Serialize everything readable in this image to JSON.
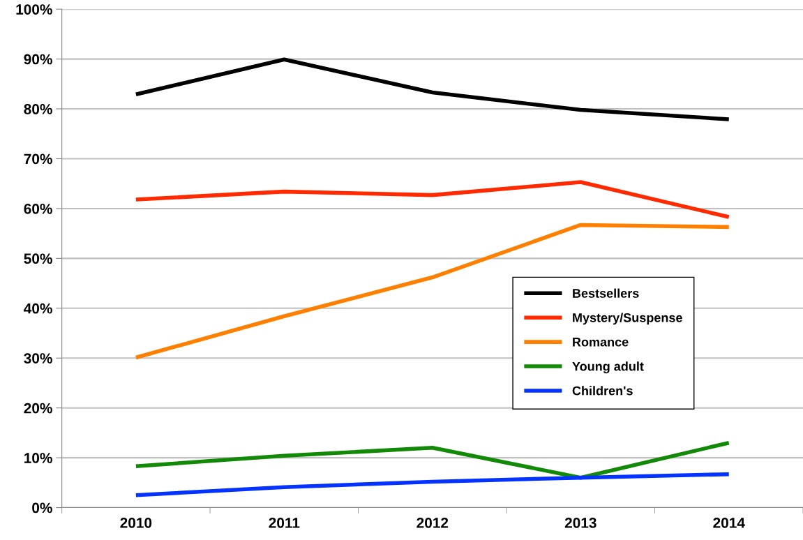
{
  "chart_data": {
    "type": "line",
    "categories": [
      "2010",
      "2011",
      "2012",
      "2013",
      "2014"
    ],
    "series": [
      {
        "name": "Bestsellers",
        "color": "#000000",
        "values": [
          82.9,
          89.9,
          83.3,
          79.8,
          77.9
        ]
      },
      {
        "name": "Mystery/Suspense",
        "color": "#ff2a00",
        "values": [
          61.8,
          63.4,
          62.7,
          65.3,
          58.3
        ]
      },
      {
        "name": "Romance",
        "color": "#ff8000",
        "values": [
          30.1,
          38.4,
          46.2,
          56.7,
          56.3
        ]
      },
      {
        "name": "Young adult",
        "color": "#138a07",
        "values": [
          8.3,
          10.4,
          12.0,
          6.0,
          13.0
        ]
      },
      {
        "name": "Children's",
        "color": "#0433ff",
        "values": [
          2.5,
          4.1,
          5.2,
          6.0,
          6.7
        ]
      }
    ],
    "ylim": [
      0,
      100
    ],
    "yticks": [
      {
        "value": 0,
        "label": "0%"
      },
      {
        "value": 10,
        "label": "10%"
      },
      {
        "value": 20,
        "label": "20%"
      },
      {
        "value": 30,
        "label": "30%"
      },
      {
        "value": 40,
        "label": "40%"
      },
      {
        "value": 50,
        "label": "50%"
      },
      {
        "value": 60,
        "label": "60%"
      },
      {
        "value": 70,
        "label": "70%"
      },
      {
        "value": 80,
        "label": "80%"
      },
      {
        "value": 90,
        "label": "90%"
      },
      {
        "value": 100,
        "label": "100%"
      }
    ],
    "grid": "y",
    "legend": "right",
    "marker": "none",
    "line_style": "solid"
  }
}
